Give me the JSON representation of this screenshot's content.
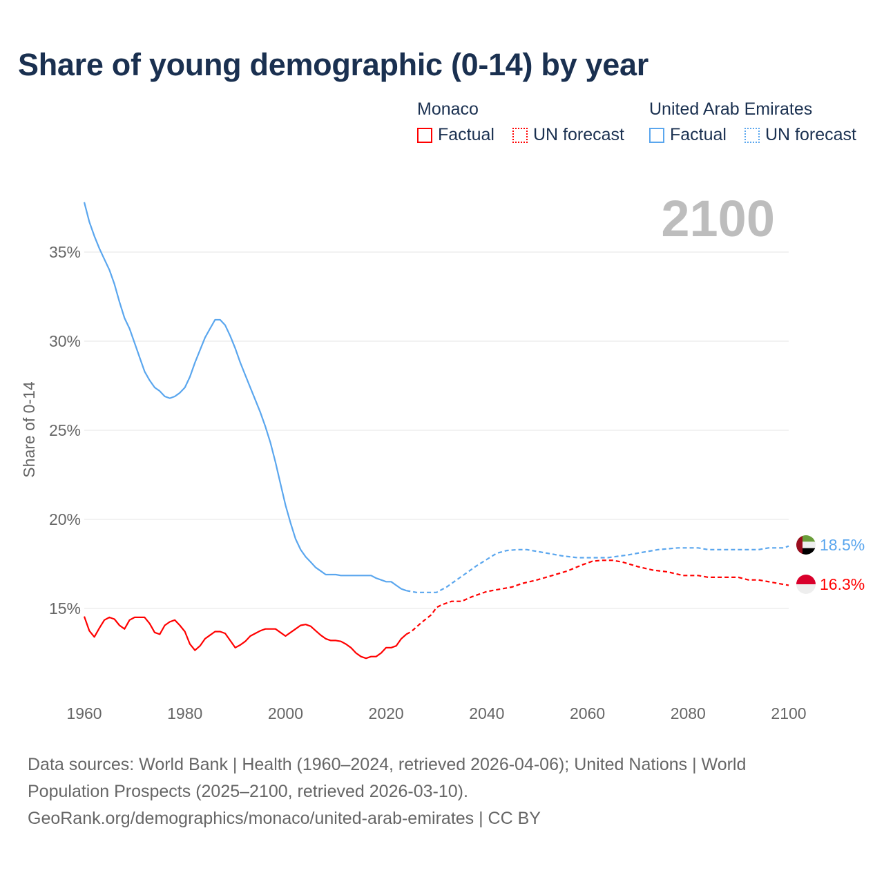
{
  "title": "Share of young demographic (0-14) by year",
  "legend": [
    {
      "name": "Monaco",
      "factual": "Factual",
      "forecast": "UN forecast",
      "color": "#ff0000"
    },
    {
      "name": "United Arab Emirates",
      "factual": "Factual",
      "forecast": "UN forecast",
      "color": "#5aa6ee"
    }
  ],
  "year_display": "2100",
  "footer": {
    "line1": "Data sources: World Bank | Health (1960–2024, retrieved 2026-04-06); United Nations | World",
    "line2": "Population Prospects (2025–2100, retrieved 2026-03-10).",
    "line3": "GeoRank.org/demographics/monaco/united-arab-emirates | CC BY"
  },
  "chart_data": {
    "type": "line",
    "title": "Share of young demographic (0-14) by year",
    "xlabel": "",
    "ylabel": "Share of 0-14",
    "xlim": [
      1960,
      2100
    ],
    "ylim": [
      10,
      38.5
    ],
    "x_ticks": [
      "1960",
      "1980",
      "2000",
      "2020",
      "2040",
      "2060",
      "2080",
      "2100"
    ],
    "y_ticks": [
      {
        "v": 15,
        "label": "15%"
      },
      {
        "v": 20,
        "label": "20%"
      },
      {
        "v": 25,
        "label": "25%"
      },
      {
        "v": 30,
        "label": "30%"
      },
      {
        "v": 35,
        "label": "35%"
      }
    ],
    "grid": true,
    "series": [
      {
        "name": "United Arab Emirates",
        "color": "#5aa6ee",
        "end_label": "18.5%",
        "factual_start": 1960,
        "factual": [
          37.8,
          36.7,
          35.9,
          35.2,
          34.6,
          34.0,
          33.2,
          32.2,
          31.3,
          30.7,
          29.9,
          29.1,
          28.3,
          27.8,
          27.4,
          27.2,
          26.9,
          26.8,
          26.9,
          27.1,
          27.4,
          28.0,
          28.8,
          29.5,
          30.2,
          30.7,
          31.2,
          31.2,
          30.9,
          30.3,
          29.6,
          28.8,
          28.1,
          27.4,
          26.7,
          26.0,
          25.2,
          24.3,
          23.2,
          22.0,
          20.8,
          19.8,
          18.9,
          18.3,
          17.9,
          17.6,
          17.3,
          17.1,
          16.9,
          16.9,
          16.9,
          16.85,
          16.85,
          16.85,
          16.85,
          16.85,
          16.85,
          16.85,
          16.7,
          16.6,
          16.5,
          16.5,
          16.3,
          16.1,
          16.0
        ],
        "forecast": [
          [
            2024,
            16.0
          ],
          [
            2026,
            15.9
          ],
          [
            2030,
            15.9
          ],
          [
            2032,
            16.2
          ],
          [
            2035,
            16.8
          ],
          [
            2038,
            17.4
          ],
          [
            2040,
            17.75
          ],
          [
            2042,
            18.1
          ],
          [
            2044,
            18.25
          ],
          [
            2046,
            18.3
          ],
          [
            2048,
            18.3
          ],
          [
            2050,
            18.2
          ],
          [
            2052,
            18.1
          ],
          [
            2055,
            17.95
          ],
          [
            2058,
            17.85
          ],
          [
            2064,
            17.85
          ],
          [
            2068,
            18.0
          ],
          [
            2072,
            18.2
          ],
          [
            2074,
            18.3
          ],
          [
            2078,
            18.4
          ],
          [
            2082,
            18.4
          ],
          [
            2084,
            18.3
          ],
          [
            2094,
            18.3
          ],
          [
            2096,
            18.4
          ],
          [
            2099,
            18.4
          ],
          [
            2100,
            18.5
          ]
        ]
      },
      {
        "name": "Monaco",
        "color": "#ff0000",
        "end_label": "16.3%",
        "factual_start": 1960,
        "factual": [
          14.55,
          13.75,
          13.4,
          13.9,
          14.35,
          14.5,
          14.4,
          14.05,
          13.85,
          14.35,
          14.5,
          14.5,
          14.5,
          14.15,
          13.65,
          13.55,
          14.05,
          14.25,
          14.35,
          14.05,
          13.7,
          13.0,
          12.65,
          12.9,
          13.3,
          13.5,
          13.7,
          13.7,
          13.6,
          13.2,
          12.8,
          12.95,
          13.15,
          13.45,
          13.6,
          13.75,
          13.85,
          13.85,
          13.85,
          13.65,
          13.45,
          13.65,
          13.85,
          14.05,
          14.1,
          14.0,
          13.75,
          13.5,
          13.3,
          13.2,
          13.2,
          13.15,
          13.0,
          12.8,
          12.5,
          12.3,
          12.2,
          12.3,
          12.3,
          12.5,
          12.8,
          12.8,
          12.9,
          13.3,
          13.55
        ],
        "forecast": [
          [
            2024,
            13.55
          ],
          [
            2025,
            13.7
          ],
          [
            2027,
            14.2
          ],
          [
            2029,
            14.65
          ],
          [
            2030,
            15.05
          ],
          [
            2031,
            15.2
          ],
          [
            2033,
            15.4
          ],
          [
            2035,
            15.4
          ],
          [
            2037,
            15.65
          ],
          [
            2040,
            15.95
          ],
          [
            2043,
            16.1
          ],
          [
            2045,
            16.2
          ],
          [
            2047,
            16.4
          ],
          [
            2050,
            16.6
          ],
          [
            2053,
            16.85
          ],
          [
            2056,
            17.1
          ],
          [
            2059,
            17.45
          ],
          [
            2061,
            17.65
          ],
          [
            2063,
            17.7
          ],
          [
            2065,
            17.7
          ],
          [
            2067,
            17.6
          ],
          [
            2070,
            17.35
          ],
          [
            2073,
            17.15
          ],
          [
            2076,
            17.05
          ],
          [
            2079,
            16.85
          ],
          [
            2082,
            16.85
          ],
          [
            2084,
            16.75
          ],
          [
            2090,
            16.75
          ],
          [
            2092,
            16.6
          ],
          [
            2094,
            16.6
          ],
          [
            2097,
            16.45
          ],
          [
            2100,
            16.3
          ]
        ]
      }
    ]
  }
}
